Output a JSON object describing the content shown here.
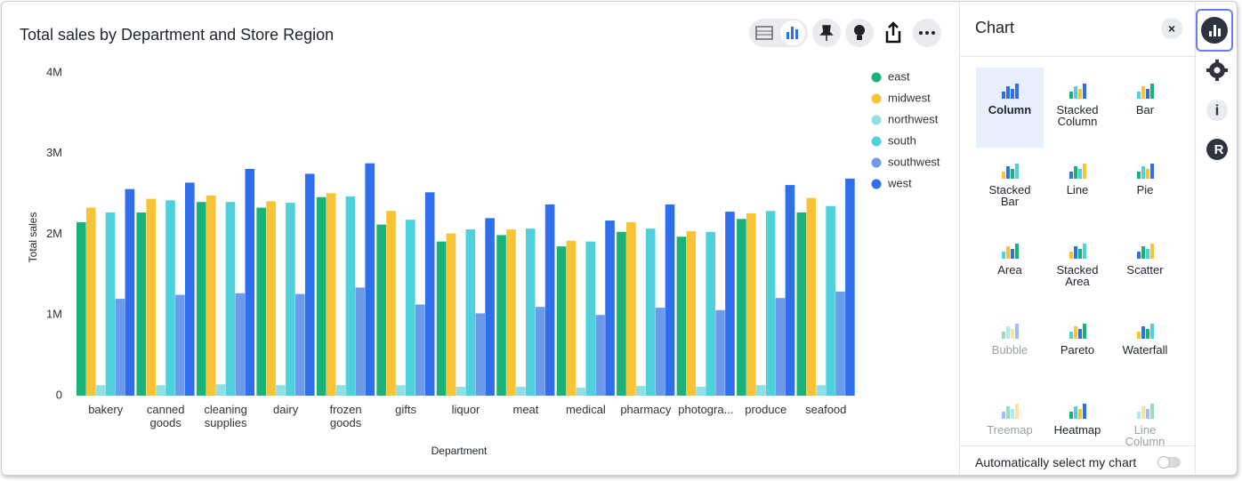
{
  "chart_data": {
    "type": "bar",
    "title": "Total sales by Department and Store Region",
    "x_label": "Department",
    "y_label": "Total sales",
    "categories": [
      "bakery",
      "canned goods",
      "cleaning supplies",
      "dairy",
      "frozen goods",
      "gifts",
      "liquor",
      "meat",
      "medical",
      "pharmacy",
      "photogra...",
      "produce",
      "seafood"
    ],
    "series": [
      {
        "name": "east",
        "color": "#19b37a",
        "values": [
          2150000,
          2270000,
          2400000,
          2330000,
          2460000,
          2120000,
          1910000,
          1990000,
          1850000,
          2030000,
          1970000,
          2190000,
          2270000
        ]
      },
      {
        "name": "midwest",
        "color": "#f8c435",
        "values": [
          2330000,
          2440000,
          2480000,
          2410000,
          2510000,
          2290000,
          2010000,
          2060000,
          1920000,
          2150000,
          2040000,
          2260000,
          2450000
        ]
      },
      {
        "name": "northwest",
        "color": "#8ee0e6",
        "values": [
          130000,
          130000,
          140000,
          130000,
          130000,
          130000,
          110000,
          110000,
          100000,
          120000,
          110000,
          130000,
          130000
        ]
      },
      {
        "name": "south",
        "color": "#4fd1dc",
        "values": [
          2270000,
          2420000,
          2400000,
          2390000,
          2470000,
          2180000,
          2060000,
          2070000,
          1910000,
          2070000,
          2030000,
          2290000,
          2350000
        ]
      },
      {
        "name": "southwest",
        "color": "#6c9bec",
        "values": [
          1200000,
          1250000,
          1270000,
          1260000,
          1340000,
          1130000,
          1020000,
          1100000,
          1000000,
          1090000,
          1060000,
          1210000,
          1290000
        ]
      },
      {
        "name": "west",
        "color": "#2f6fee",
        "values": [
          2560000,
          2640000,
          2810000,
          2750000,
          2880000,
          2520000,
          2200000,
          2370000,
          2170000,
          2370000,
          2280000,
          2610000,
          2690000
        ]
      }
    ],
    "ylim": [
      0,
      4000000
    ],
    "yticks": [
      0,
      {
        "value": 1000000,
        "label": "1M"
      },
      {
        "value": 2000000,
        "label": "2M"
      },
      {
        "value": 3000000,
        "label": "3M"
      },
      {
        "value": 4000000,
        "label": "4M"
      }
    ],
    "grid": false,
    "legend": "right"
  },
  "chart_panel": {
    "title": "Chart",
    "types": [
      {
        "label": "Column",
        "selected": true
      },
      {
        "label": "Stacked Column"
      },
      {
        "label": "Bar"
      },
      {
        "label": "Stacked Bar"
      },
      {
        "label": "Line"
      },
      {
        "label": "Pie"
      },
      {
        "label": "Area"
      },
      {
        "label": "Stacked Area"
      },
      {
        "label": "Scatter"
      },
      {
        "label": "Bubble",
        "disabled": true
      },
      {
        "label": "Pareto"
      },
      {
        "label": "Waterfall"
      },
      {
        "label": "Treemap",
        "disabled": true
      },
      {
        "label": "Heatmap"
      },
      {
        "label": "Line Column",
        "disabled": true
      }
    ],
    "auto_select": "Automatically select my chart"
  }
}
